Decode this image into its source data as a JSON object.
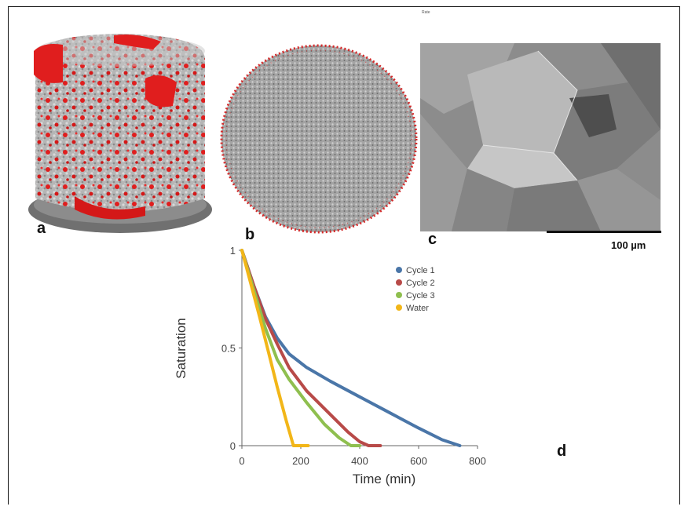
{
  "panels": {
    "a": {
      "label": "a"
    },
    "b": {
      "label": "b"
    },
    "c": {
      "label": "c",
      "scale_bar": "100 µm"
    },
    "d": {
      "label": "d"
    }
  },
  "header_mark": "Rate",
  "colors": {
    "pore_red": "#e01e1e",
    "rock_grey": "#a8a8a8",
    "sem_grey": "#8c8c8c"
  },
  "chart_data": {
    "type": "line",
    "xlabel": "Time (min)",
    "ylabel": "Saturation",
    "xlim": [
      0,
      800
    ],
    "ylim": [
      0,
      1
    ],
    "xticks": [
      0,
      200,
      400,
      600,
      800
    ],
    "yticks": [
      0,
      0.5,
      1
    ],
    "ytick_labels": [
      "0",
      "0.5",
      "1"
    ],
    "grid": false,
    "legend_position": "top-right",
    "series": [
      {
        "name": "Cycle 1",
        "color": "#4a76a8",
        "x": [
          0,
          40,
          80,
          120,
          160,
          220,
          300,
          400,
          500,
          600,
          680,
          740
        ],
        "y": [
          1.0,
          0.82,
          0.66,
          0.55,
          0.47,
          0.4,
          0.33,
          0.25,
          0.17,
          0.09,
          0.03,
          0.0
        ]
      },
      {
        "name": "Cycle 2",
        "color": "#b84a48",
        "x": [
          0,
          40,
          80,
          120,
          160,
          220,
          300,
          360,
          400,
          430,
          470
        ],
        "y": [
          1.0,
          0.82,
          0.65,
          0.52,
          0.4,
          0.28,
          0.16,
          0.07,
          0.02,
          0.0,
          0.0
        ]
      },
      {
        "name": "Cycle 3",
        "color": "#8fbf4f",
        "x": [
          0,
          40,
          80,
          120,
          160,
          220,
          280,
          330,
          370,
          400
        ],
        "y": [
          1.0,
          0.8,
          0.6,
          0.44,
          0.34,
          0.22,
          0.11,
          0.04,
          0.0,
          0.0
        ]
      },
      {
        "name": "Water",
        "color": "#f2b618",
        "x": [
          0,
          30,
          60,
          90,
          120,
          150,
          175,
          200,
          225
        ],
        "y": [
          1.0,
          0.83,
          0.66,
          0.48,
          0.3,
          0.13,
          0.0,
          0.0,
          0.0
        ]
      }
    ]
  }
}
